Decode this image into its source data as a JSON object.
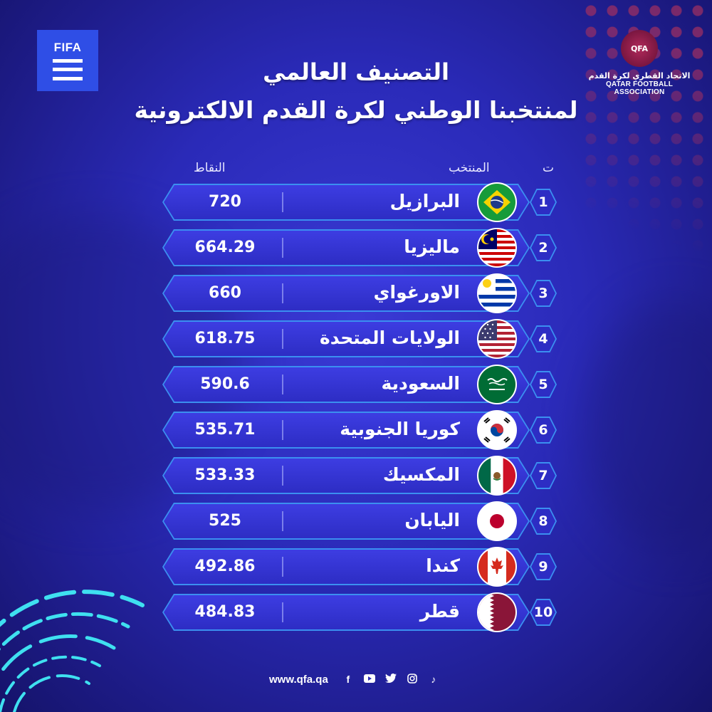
{
  "brand": {
    "fifa_logo_text": "FIFA",
    "qfa_badge": "QFA",
    "qfa_name_ar": "الاتحاد القطري لكرة القدم",
    "qfa_name_en": "QATAR FOOTBALL ASSOCIATION"
  },
  "title": {
    "line1": "التصنيف العالمي",
    "line2": "لمنتخبنا الوطني لكرة القدم الالكترونية"
  },
  "table": {
    "headers": {
      "points": "النقاط",
      "team": "المنتخب",
      "rank": "ت"
    },
    "rows": [
      {
        "rank": "1",
        "team": "البرازيل",
        "points": "720",
        "flag": "brazil-flag-icon"
      },
      {
        "rank": "2",
        "team": "ماليزيا",
        "points": "664.29",
        "flag": "malaysia-flag-icon"
      },
      {
        "rank": "3",
        "team": "الاورغواي",
        "points": "660",
        "flag": "uruguay-flag-icon"
      },
      {
        "rank": "4",
        "team": "الولايات المتحدة",
        "points": "618.75",
        "flag": "usa-flag-icon"
      },
      {
        "rank": "5",
        "team": "السعودية",
        "points": "590.6",
        "flag": "saudi-arabia-flag-icon"
      },
      {
        "rank": "6",
        "team": "كوريا الجنوبية",
        "points": "535.71",
        "flag": "south-korea-flag-icon"
      },
      {
        "rank": "7",
        "team": "المكسيك",
        "points": "533.33",
        "flag": "mexico-flag-icon"
      },
      {
        "rank": "8",
        "team": "اليابان",
        "points": "525",
        "flag": "japan-flag-icon"
      },
      {
        "rank": "9",
        "team": "كندا",
        "points": "492.86",
        "flag": "canada-flag-icon"
      },
      {
        "rank": "10",
        "team": "قطر",
        "points": "484.83",
        "flag": "qatar-flag-icon"
      }
    ]
  },
  "footer": {
    "url": "www.qfa.qa",
    "social": [
      "facebook-icon",
      "youtube-icon",
      "twitter-icon",
      "instagram-icon",
      "tiktok-icon"
    ]
  },
  "colors": {
    "background": "#2a2ab8",
    "row_fill": "#3d3de2",
    "row_border": "#3b8ff0",
    "accent_maroon": "#9a2f63",
    "arc_cyan": "#3fe0f0"
  }
}
